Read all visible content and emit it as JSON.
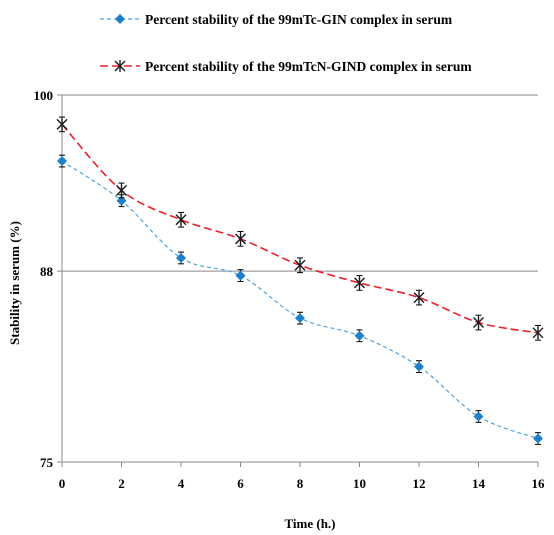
{
  "chart_data": {
    "type": "line",
    "xlabel": "Time (h.)",
    "ylabel": "Stability in serum   (%)",
    "xlim": [
      0,
      16
    ],
    "ylim": [
      75,
      100
    ],
    "xticks": [
      0,
      2,
      4,
      6,
      8,
      10,
      12,
      14,
      16
    ],
    "yticks": [
      75,
      88,
      100
    ],
    "grid": "horizontal at 88 and 100",
    "legend_position": "top",
    "series": [
      {
        "name": "Percent stability of the 99mTc-GIN complex in serum",
        "marker": "diamond",
        "line_style": "dashed",
        "color": "#1f7fc8",
        "line_color": "#4ea3dc",
        "x": [
          0,
          2,
          4,
          6,
          8,
          10,
          12,
          14,
          16
        ],
        "y": [
          95.5,
          92.8,
          88.9,
          87.7,
          84.8,
          83.6,
          81.5,
          78.1,
          76.6
        ],
        "error": [
          0.4,
          0.4,
          0.4,
          0.4,
          0.4,
          0.4,
          0.4,
          0.4,
          0.4
        ]
      },
      {
        "name": "Percent stability of the 99mTcN-GIND complex in serum",
        "marker": "asterisk",
        "line_style": "dashed",
        "color": "#1a1a1a",
        "line_color": "#e8202a",
        "x": [
          0,
          2,
          4,
          6,
          8,
          10,
          12,
          14,
          16
        ],
        "y": [
          98.0,
          93.5,
          91.5,
          90.2,
          88.4,
          87.2,
          86.2,
          84.5,
          83.8
        ],
        "error": [
          0.5,
          0.5,
          0.5,
          0.5,
          0.5,
          0.5,
          0.5,
          0.5,
          0.5
        ]
      }
    ]
  }
}
